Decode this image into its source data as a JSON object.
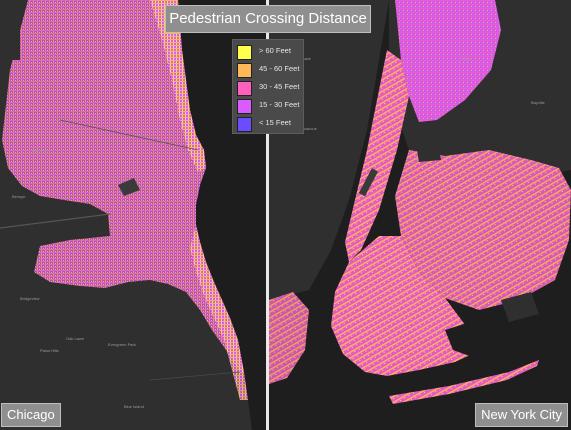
{
  "title": "Pedestrian Crossing Distance",
  "legend": [
    {
      "label": "> 60 Feet",
      "color": "#ffff4c"
    },
    {
      "label": "45 - 60 Feet",
      "color": "#ffb857"
    },
    {
      "label": "30 - 45 Feet",
      "color": "#ff5fbd"
    },
    {
      "label": "15 - 30 Feet",
      "color": "#d85cff"
    },
    {
      "label": "< 15 Feet",
      "color": "#6b4cff"
    }
  ],
  "cities": {
    "left": {
      "name": "Chicago"
    },
    "right": {
      "name": "New York City"
    }
  },
  "colors": {
    "background": "#2f2f2f",
    "water": "#1d1d1d",
    "roads": "#444444"
  }
}
